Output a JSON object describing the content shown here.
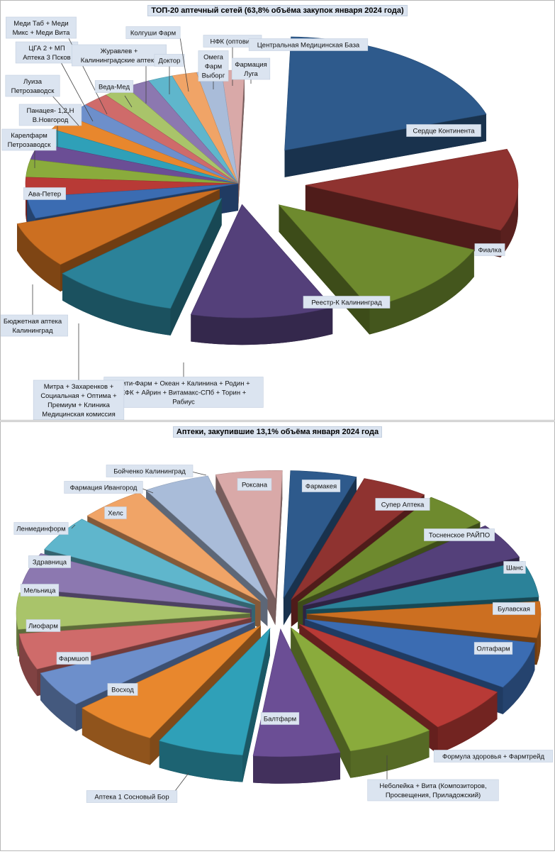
{
  "chart_data": [
    {
      "type": "pie",
      "title": "ТОП-20 аптечный сетей (63,8% объёма закупок января  2024 года)",
      "slices": [
        {
          "label": "Сердце Континента",
          "value": 12.3,
          "color": "#2e5a8c"
        },
        {
          "label": "Фиалка",
          "value": 7.4,
          "color": "#8f3330"
        },
        {
          "label": "Реестр-К Калининград",
          "value": 7.3,
          "color": "#6e8a2e"
        },
        {
          "label": "Сити-Фарм + Океан + Калинина + Родин + КФК + Айрин + Витамакс-СПб + Торин + Рабиус",
          "value": 6.9,
          "color": "#54407a"
        },
        {
          "label": "Митра + Захаренков + Социальная + Оптима + Премиум + Клиника Медицинская комиссия",
          "value": 6.1,
          "color": "#2b8299"
        },
        {
          "label": "Бюджетная аптека Калининград",
          "value": 4.2,
          "color": "#cc6f21"
        },
        {
          "label": "Ава-Петер",
          "value": 1.9,
          "color": "#3b6cb2"
        },
        {
          "label": "Карелфарм Петрозаводск",
          "value": 1.8,
          "color": "#b83a36"
        },
        {
          "label": "Панацея- 1,2,Н В.Новгород",
          "value": 1.6,
          "color": "#8aab3c"
        },
        {
          "label": "Луиза Петрозаводск",
          "value": 1.5,
          "color": "#6b4e95"
        },
        {
          "label": "ЦГА 2 + МП Аптека 3 Псков",
          "value": 1.4,
          "color": "#2fa0b8"
        },
        {
          "label": "Меди Таб + Меди Микс + Меди Вита",
          "value": 1.4,
          "color": "#e8872d"
        },
        {
          "label": "Журавлев + Калининградские аптеки",
          "value": 1.3,
          "color": "#6d8fcb"
        },
        {
          "label": "Веда-Мед",
          "value": 1.3,
          "color": "#cf6b6a"
        },
        {
          "label": "Доктор",
          "value": 1.2,
          "color": "#a9c46a"
        },
        {
          "label": "Колгуши Фарм",
          "value": 1.2,
          "color": "#8c78b0"
        },
        {
          "label": "Омега Фарм Выборг",
          "value": 1.2,
          "color": "#5fb6cc"
        },
        {
          "label": "НФК (оптовик)",
          "value": 1.2,
          "color": "#f0a467"
        },
        {
          "label": "Фармация Луга",
          "value": 1.2,
          "color": "#a9bcd9"
        },
        {
          "label": "Центральная Медицинская База",
          "value": 1.1,
          "color": "#d9a9a8"
        }
      ]
    },
    {
      "type": "pie",
      "title": "Аптеки, закупившие 13,1% объёма января 2024 года",
      "slices": [
        {
          "label": "Фармакея",
          "value": 4.6,
          "color": "#2e5a8c"
        },
        {
          "label": "Супер Аптека",
          "value": 4.6,
          "color": "#8f3330"
        },
        {
          "label": "Тосненское РАЙПО",
          "value": 4.6,
          "color": "#6e8a2e"
        },
        {
          "label": "Шанс",
          "value": 4.6,
          "color": "#54407a"
        },
        {
          "label": "Булавская",
          "value": 4.6,
          "color": "#2b8299"
        },
        {
          "label": "Олтафарм",
          "value": 4.6,
          "color": "#cc6f21"
        },
        {
          "label": "Формула здоровья + Фармтрейд",
          "value": 6.0,
          "color": "#3b6cb2"
        },
        {
          "label": "Неболейка + Вита (Композиторов, Просвещения, Приладожский)",
          "value": 6.0,
          "color": "#b83a36"
        },
        {
          "label": "Балтфарм",
          "value": 6.0,
          "color": "#8aab3c"
        },
        {
          "label": "Аптека 1 Сосновый Бор",
          "value": 6.0,
          "color": "#6b4e95"
        },
        {
          "label": "Восход",
          "value": 6.0,
          "color": "#2fa0b8"
        },
        {
          "label": "Фармшоп",
          "value": 6.0,
          "color": "#e8872d"
        },
        {
          "label": "Лиофарм",
          "value": 4.6,
          "color": "#6d8fcb"
        },
        {
          "label": "Мельница",
          "value": 4.6,
          "color": "#cf6b6a"
        },
        {
          "label": "Здравница",
          "value": 4.6,
          "color": "#a9c46a"
        },
        {
          "label": "Ленмединформ",
          "value": 4.6,
          "color": "#8c78b0"
        },
        {
          "label": "Хелс",
          "value": 4.6,
          "color": "#5fb6cc"
        },
        {
          "label": "Фармация Ивангород",
          "value": 4.6,
          "color": "#f0a467"
        },
        {
          "label": "Бойченко Калининград",
          "value": 4.6,
          "color": "#a9bcd9"
        },
        {
          "label": "Роксана",
          "value": 4.6,
          "color": "#d9a9a8"
        }
      ]
    }
  ]
}
